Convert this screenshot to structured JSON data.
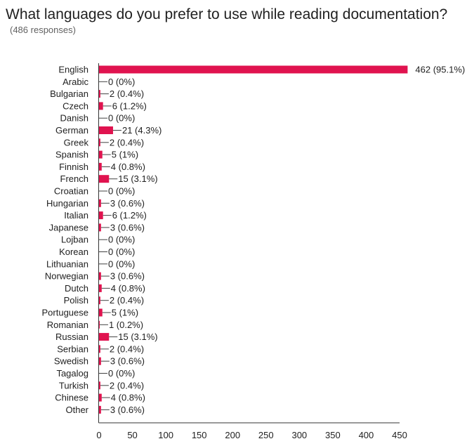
{
  "header": {
    "question": "What languages do you prefer to use while reading documentation?",
    "responses": "(486 responses)"
  },
  "chart_data": {
    "type": "bar",
    "orientation": "horizontal",
    "title": "What languages do you prefer to use while reading documentation?",
    "subtitle": "(486 responses)",
    "bar_color": "#e0134f",
    "xlim": [
      0,
      450
    ],
    "x_ticks": [
      0,
      50,
      100,
      150,
      200,
      250,
      300,
      350,
      400,
      450
    ],
    "grid": false,
    "categories": [
      "English",
      "Arabic",
      "Bulgarian",
      "Czech",
      "Danish",
      "German",
      "Greek",
      "Spanish",
      "Finnish",
      "French",
      "Croatian",
      "Hungarian",
      "Italian",
      "Japanese",
      "Lojban",
      "Korean",
      "Lithuanian",
      "Norwegian",
      "Dutch",
      "Polish",
      "Portuguese",
      "Romanian",
      "Russian",
      "Serbian",
      "Swedish",
      "Tagalog",
      "Turkish",
      "Chinese",
      "Other"
    ],
    "values": [
      462,
      0,
      2,
      6,
      0,
      21,
      2,
      5,
      4,
      15,
      0,
      3,
      6,
      3,
      0,
      0,
      0,
      3,
      4,
      2,
      5,
      1,
      15,
      2,
      3,
      0,
      2,
      4,
      3
    ],
    "data_labels": [
      "462 (95.1%)",
      "0 (0%)",
      "2 (0.4%)",
      "6 (1.2%)",
      "0 (0%)",
      "21 (4.3%)",
      "2 (0.4%)",
      "5 (1%)",
      "4 (0.8%)",
      "15 (3.1%)",
      "0 (0%)",
      "3 (0.6%)",
      "6 (1.2%)",
      "3 (0.6%)",
      "0 (0%)",
      "0 (0%)",
      "0 (0%)",
      "3 (0.6%)",
      "4 (0.8%)",
      "2 (0.4%)",
      "5 (1%)",
      "1 (0.2%)",
      "15 (3.1%)",
      "2 (0.4%)",
      "3 (0.6%)",
      "0 (0%)",
      "2 (0.4%)",
      "4 (0.8%)",
      "3 (0.6%)"
    ]
  }
}
